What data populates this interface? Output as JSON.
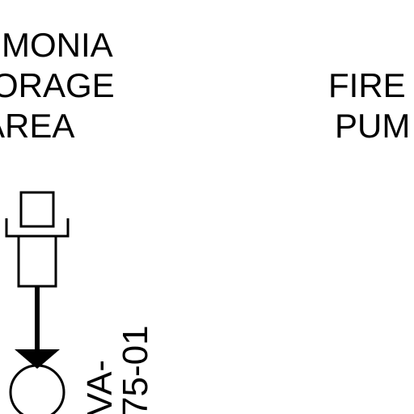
{
  "ammonia_area": {
    "line1": "MONIA",
    "line2": "ORAGE",
    "line3": "AREA"
  },
  "fire_pump": {
    "line1": "FIRE",
    "line2": "PUM"
  },
  "valve_tag": {
    "line1": "VA-",
    "line2": "75-01"
  },
  "colors": {
    "ink": "#000000",
    "background": "#ffffff"
  },
  "icons": {
    "instrument": "instrument-symbol-icon",
    "arrow": "flow-arrow-down-icon",
    "pump": "pump-circle-icon"
  }
}
